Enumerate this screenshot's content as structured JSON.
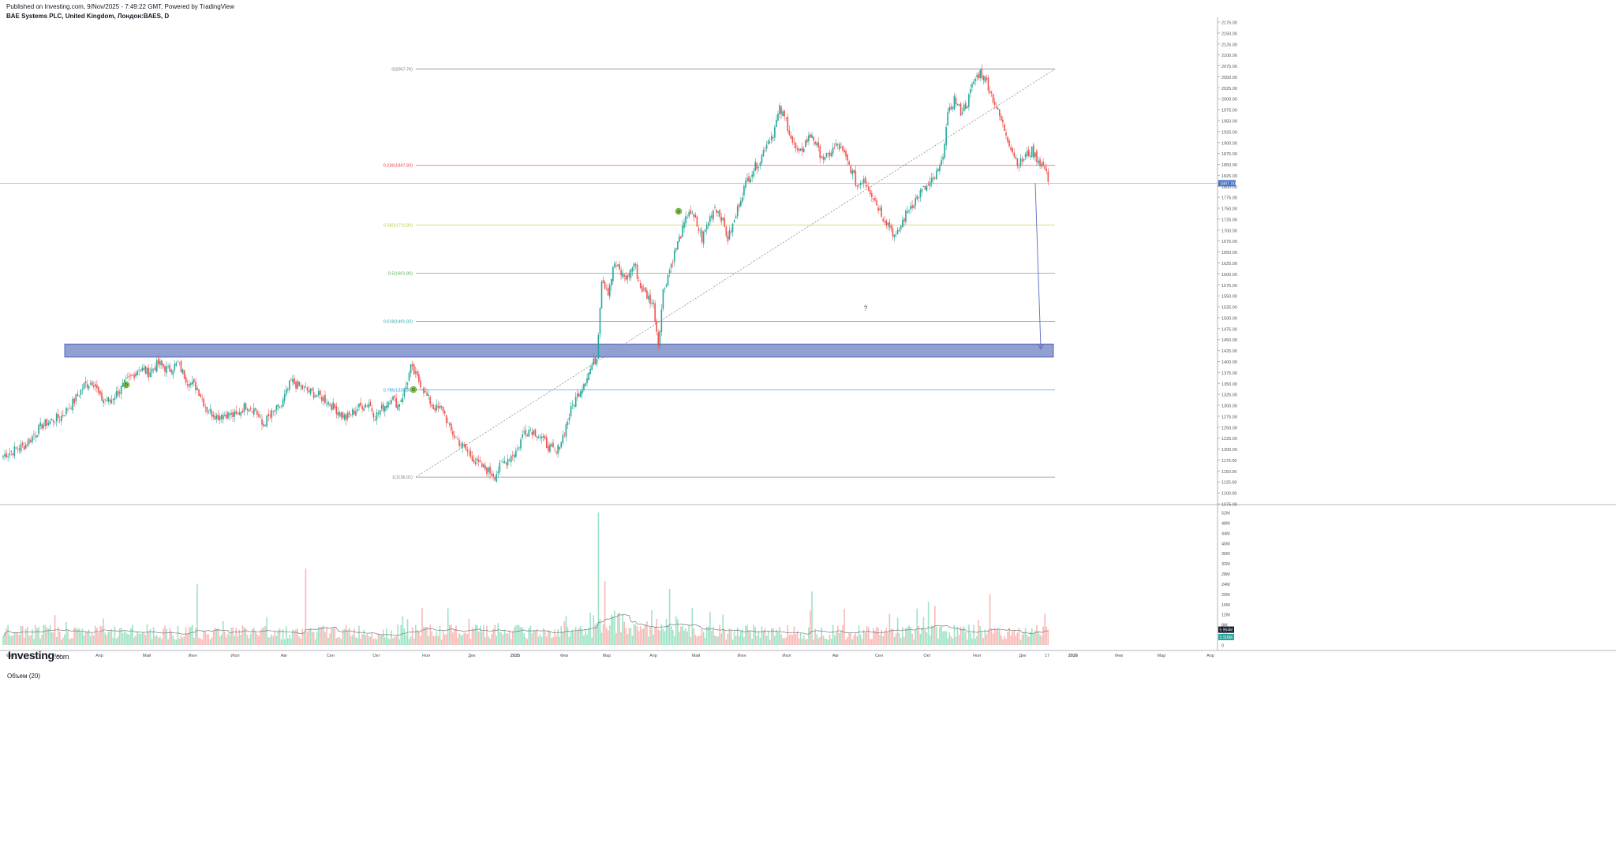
{
  "header": {
    "published": "Published on Investing.com, 9/Nov/2025 - 7:49:22 GMT, Powered by TradingView",
    "symbol": "BAE Systems PLC, United Kingdom, Лондон:BAES, D"
  },
  "logo": {
    "brand": "Investing",
    "domain": ".com"
  },
  "volume_pane": {
    "label": "Объем (20)"
  },
  "question_mark": "?",
  "colors": {
    "up": "#26a69a",
    "down": "#ef5350",
    "vol_up": "#9ee3c6",
    "vol_down": "#f8b9b6",
    "zone": "#8c9bd0",
    "price_line": "#4472c4"
  },
  "chart_data": {
    "type": "candlestick",
    "interval": "D",
    "price_axis": {
      "ylim": [
        1075,
        2175
      ],
      "ticks": [
        "2175.00",
        "2150.00",
        "2125.00",
        "2100.00",
        "2075.00",
        "2050.00",
        "2025.00",
        "2000.00",
        "1975.00",
        "1950.00",
        "1925.00",
        "1900.00",
        "1875.00",
        "1850.00",
        "1825.00",
        "1800.00",
        "1775.00",
        "1750.00",
        "1725.00",
        "1700.00",
        "1675.00",
        "1650.00",
        "1625.00",
        "1600.00",
        "1575.00",
        "1550.00",
        "1525.00",
        "1500.00",
        "1475.00",
        "1450.00",
        "1425.00",
        "1400.00",
        "1375.00",
        "1350.00",
        "1325.00",
        "1300.00",
        "1275.00",
        "1250.00",
        "1225.00",
        "1200.00",
        "1175.00",
        "1150.00",
        "1125.00",
        "1100.00",
        "1075.00"
      ],
      "current_price_label": "1807.00"
    },
    "time_axis": [
      "Фев",
      "Мар",
      "Апр",
      "Май",
      "Июн",
      "Июл",
      "Авг",
      "Сен",
      "Окт",
      "Ноя",
      "Дек",
      "2025",
      "Фев",
      "Мар",
      "Апр",
      "Май",
      "Июн",
      "Июл",
      "Авг",
      "Сен",
      "Окт",
      "Ноя",
      "Дек",
      "17",
      "2026",
      "Фев",
      "Мар",
      "Апр"
    ],
    "fibonacci": [
      {
        "label": "0(2067.76)",
        "price": 2067.76,
        "color": "#787b86"
      },
      {
        "label": "0.236(1847.83)",
        "price": 1847.83,
        "color": "#f23645"
      },
      {
        "label": "0.382(1711.80)",
        "price": 1711.8,
        "color": "#c0ca33"
      },
      {
        "label": "0.5(1601.86)",
        "price": 1601.86,
        "color": "#4caf50"
      },
      {
        "label": "0.618(1491.92)",
        "price": 1491.92,
        "color": "#26a69a"
      },
      {
        "label": "0.786(1335.39)",
        "price": 1335.39,
        "color": "#2196f3"
      },
      {
        "label": "1(1136.01)",
        "price": 1136.01,
        "color": "#787b86"
      }
    ],
    "zone": {
      "low": 1410,
      "high": 1440
    },
    "trendline": {
      "from": 1136.01,
      "to": 2067.76
    },
    "dividend_markers": [
      "D",
      "D",
      "D"
    ],
    "anchors": [
      [
        0,
        1185
      ],
      [
        14,
        1210
      ],
      [
        24,
        1255
      ],
      [
        36,
        1275
      ],
      [
        44,
        1310
      ],
      [
        50,
        1345
      ],
      [
        56,
        1355
      ],
      [
        60,
        1315
      ],
      [
        66,
        1310
      ],
      [
        72,
        1335
      ],
      [
        78,
        1360
      ],
      [
        84,
        1385
      ],
      [
        90,
        1375
      ],
      [
        96,
        1395
      ],
      [
        102,
        1380
      ],
      [
        108,
        1395
      ],
      [
        114,
        1355
      ],
      [
        120,
        1340
      ],
      [
        126,
        1290
      ],
      [
        132,
        1275
      ],
      [
        138,
        1280
      ],
      [
        144,
        1275
      ],
      [
        150,
        1300
      ],
      [
        156,
        1290
      ],
      [
        160,
        1255
      ],
      [
        166,
        1280
      ],
      [
        172,
        1300
      ],
      [
        178,
        1355
      ],
      [
        184,
        1340
      ],
      [
        190,
        1330
      ],
      [
        196,
        1320
      ],
      [
        200,
        1310
      ],
      [
        206,
        1290
      ],
      [
        212,
        1270
      ],
      [
        218,
        1290
      ],
      [
        222,
        1300
      ],
      [
        226,
        1305
      ],
      [
        230,
        1275
      ],
      [
        236,
        1300
      ],
      [
        240,
        1320
      ],
      [
        244,
        1300
      ],
      [
        248,
        1330
      ],
      [
        252,
        1385
      ],
      [
        258,
        1350
      ],
      [
        262,
        1320
      ],
      [
        266,
        1295
      ],
      [
        272,
        1290
      ],
      [
        276,
        1245
      ],
      [
        282,
        1215
      ],
      [
        288,
        1190
      ],
      [
        294,
        1165
      ],
      [
        300,
        1150
      ],
      [
        304,
        1140
      ],
      [
        308,
        1165
      ],
      [
        314,
        1185
      ],
      [
        318,
        1200
      ],
      [
        322,
        1240
      ],
      [
        326,
        1245
      ],
      [
        332,
        1230
      ],
      [
        336,
        1210
      ],
      [
        342,
        1190
      ],
      [
        346,
        1230
      ],
      [
        352,
        1300
      ],
      [
        356,
        1330
      ],
      [
        360,
        1360
      ],
      [
        364,
        1390
      ],
      [
        367,
        1410
      ],
      [
        370,
        1590
      ],
      [
        374,
        1560
      ],
      [
        378,
        1625
      ],
      [
        382,
        1600
      ],
      [
        386,
        1590
      ],
      [
        390,
        1625
      ],
      [
        394,
        1570
      ],
      [
        398,
        1550
      ],
      [
        402,
        1530
      ],
      [
        405,
        1440
      ],
      [
        408,
        1560
      ],
      [
        412,
        1610
      ],
      [
        416,
        1660
      ],
      [
        420,
        1700
      ],
      [
        424,
        1745
      ],
      [
        428,
        1720
      ],
      [
        432,
        1680
      ],
      [
        436,
        1720
      ],
      [
        440,
        1755
      ],
      [
        444,
        1730
      ],
      [
        448,
        1680
      ],
      [
        452,
        1720
      ],
      [
        456,
        1775
      ],
      [
        460,
        1815
      ],
      [
        464,
        1840
      ],
      [
        468,
        1860
      ],
      [
        472,
        1900
      ],
      [
        476,
        1920
      ],
      [
        480,
        1975
      ],
      [
        484,
        1950
      ],
      [
        488,
        1900
      ],
      [
        492,
        1870
      ],
      [
        496,
        1900
      ],
      [
        500,
        1920
      ],
      [
        504,
        1880
      ],
      [
        508,
        1860
      ],
      [
        512,
        1880
      ],
      [
        516,
        1895
      ],
      [
        520,
        1870
      ],
      [
        524,
        1840
      ],
      [
        528,
        1800
      ],
      [
        532,
        1820
      ],
      [
        536,
        1790
      ],
      [
        540,
        1760
      ],
      [
        544,
        1730
      ],
      [
        548,
        1710
      ],
      [
        552,
        1680
      ],
      [
        556,
        1720
      ],
      [
        560,
        1750
      ],
      [
        564,
        1770
      ],
      [
        568,
        1790
      ],
      [
        572,
        1800
      ],
      [
        576,
        1820
      ],
      [
        580,
        1850
      ],
      [
        584,
        1960
      ],
      [
        588,
        2000
      ],
      [
        592,
        1970
      ],
      [
        596,
        1990
      ],
      [
        600,
        2040
      ],
      [
        604,
        2060
      ],
      [
        608,
        2040
      ],
      [
        612,
        2000
      ],
      [
        616,
        1960
      ],
      [
        620,
        1920
      ],
      [
        624,
        1880
      ],
      [
        628,
        1850
      ],
      [
        632,
        1870
      ],
      [
        636,
        1880
      ],
      [
        640,
        1860
      ],
      [
        644,
        1840
      ],
      [
        646,
        1810
      ]
    ],
    "volume_axis": {
      "ticks": [
        "52M",
        "48M",
        "44M",
        "40M",
        "36M",
        "32M",
        "28M",
        "24M",
        "20M",
        "16M",
        "12M",
        "8M",
        "4M",
        "0"
      ],
      "current_labels": [
        "5.954M",
        "3.116M"
      ]
    },
    "volume_spikes": [
      [
        187,
        30
      ],
      [
        368,
        52
      ],
      [
        120,
        24
      ],
      [
        412,
        22
      ],
      [
        500,
        21
      ],
      [
        610,
        20
      ],
      [
        572,
        17
      ],
      [
        372,
        25
      ]
    ]
  }
}
